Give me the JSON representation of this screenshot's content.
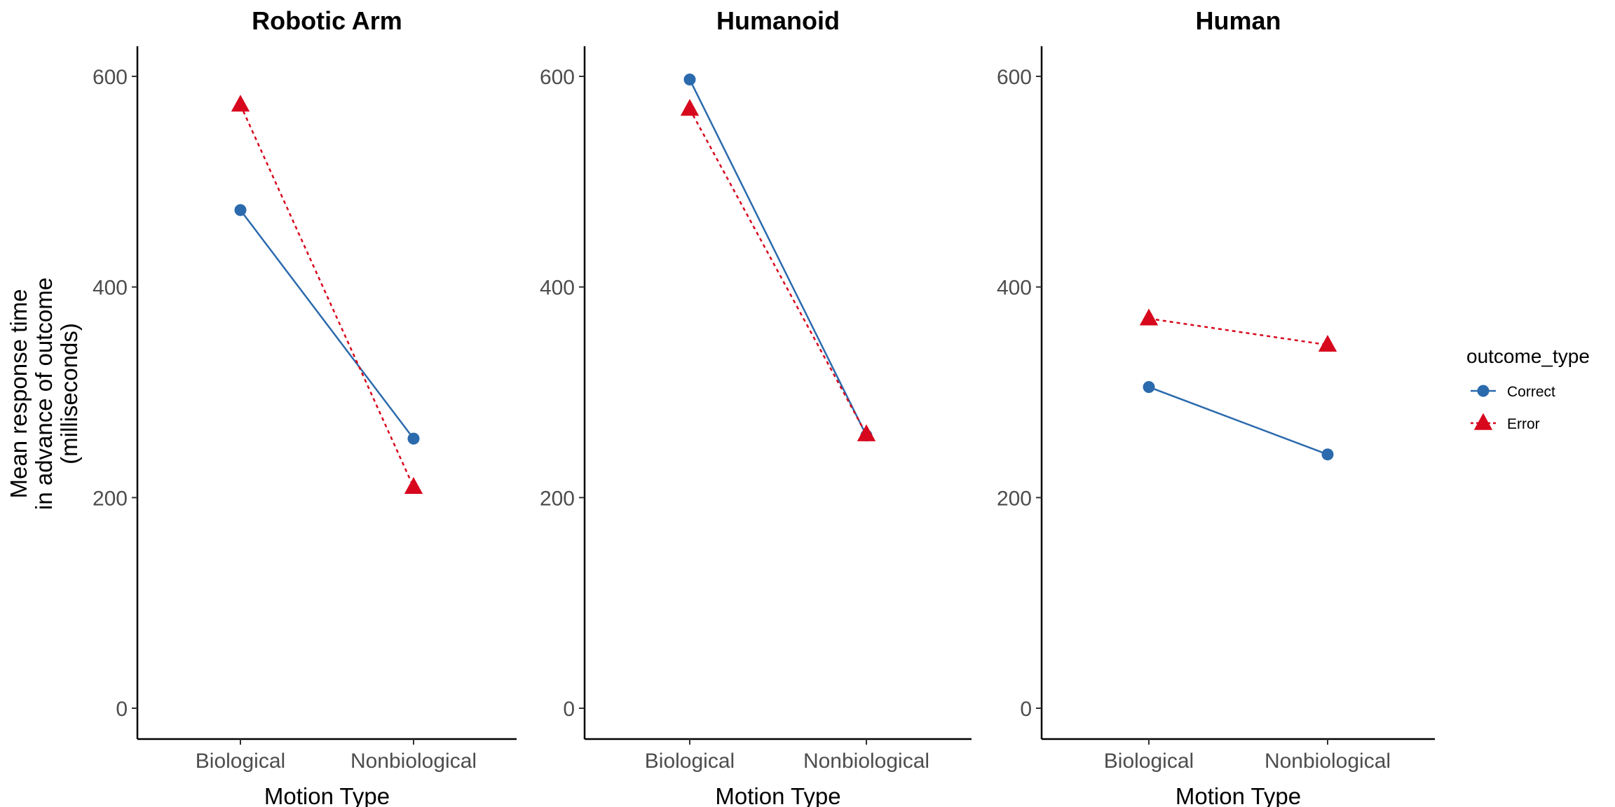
{
  "chart_data": {
    "type": "line",
    "ylabel_lines": [
      "Mean response time",
      "in advance of outcome",
      "(milliseconds)"
    ],
    "xlabel": "Motion Type",
    "categories": [
      "Biological",
      "Nonbiological"
    ],
    "ylim": [
      -30,
      630
    ],
    "yticks": [
      0,
      200,
      400,
      600
    ],
    "grid": false,
    "legend": {
      "title": "outcome_type",
      "placement": "right",
      "entries": [
        {
          "name": "Correct",
          "color": "#2b6aad",
          "marker": "circle",
          "line": "solid"
        },
        {
          "name": "Error",
          "color": "#d7081d",
          "marker": "triangle",
          "line": "dotted"
        }
      ]
    },
    "panels": [
      {
        "title": "Robotic Arm",
        "series": [
          {
            "name": "Correct",
            "values": [
              473,
              256
            ]
          },
          {
            "name": "Error",
            "values": [
              573,
              210
            ]
          }
        ]
      },
      {
        "title": "Humanoid",
        "series": [
          {
            "name": "Correct",
            "values": [
              597,
              259
            ]
          },
          {
            "name": "Error",
            "values": [
              569,
              260
            ]
          }
        ]
      },
      {
        "title": "Human",
        "series": [
          {
            "name": "Correct",
            "values": [
              305,
              241
            ]
          },
          {
            "name": "Error",
            "values": [
              370,
              345
            ]
          }
        ]
      }
    ]
  }
}
